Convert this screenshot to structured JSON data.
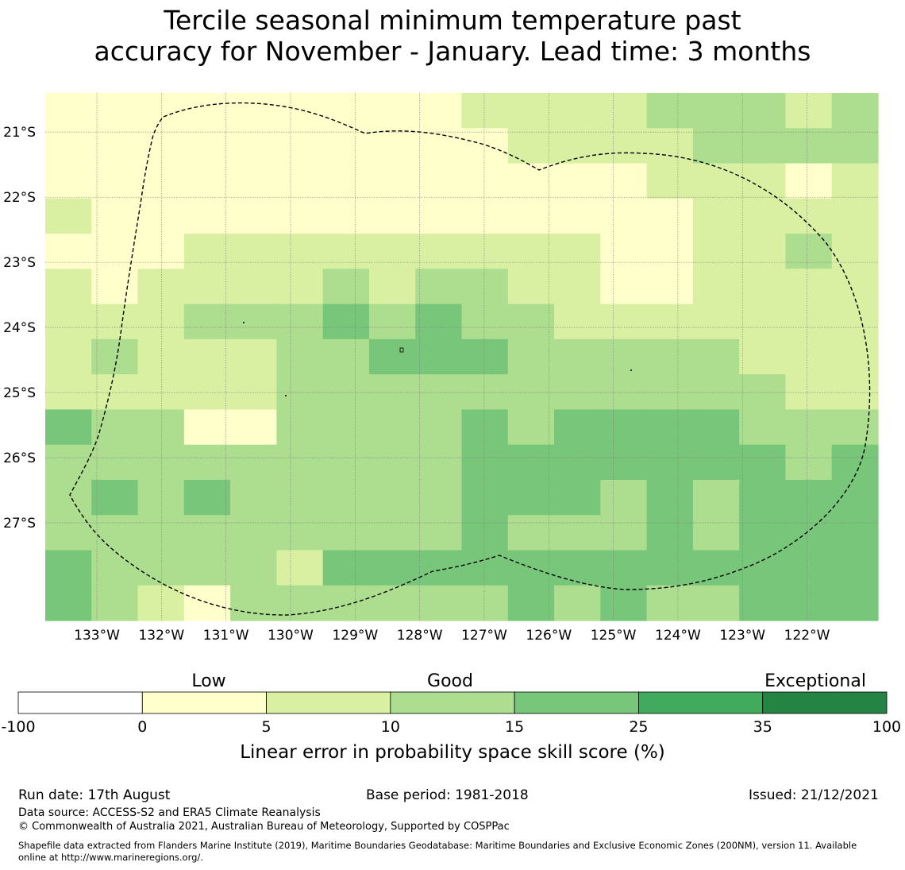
{
  "title_line1": "Tercile seasonal minimum temperature past",
  "title_line2": "accuracy for November - January. Lead time: 3 months",
  "map": {
    "lon_labels": [
      "133°W",
      "132°W",
      "131°W",
      "130°W",
      "129°W",
      "128°W",
      "127°W",
      "126°W",
      "125°W",
      "124°W",
      "123°W",
      "122°W"
    ],
    "lon_values": [
      -133,
      -132,
      -131,
      -130,
      -129,
      -128,
      -127,
      -126,
      -125,
      -124,
      -123,
      -122
    ],
    "lat_labels": [
      "21°S",
      "22°S",
      "23°S",
      "24°S",
      "25°S",
      "26°S",
      "27°S"
    ],
    "lat_values": [
      -21,
      -22,
      -23,
      -24,
      -25,
      -26,
      -27
    ],
    "lon_range": [
      -133.8,
      -120.9
    ],
    "lat_range": [
      -28.5,
      -20.4
    ],
    "grid": true,
    "cell_values_rows_north_to_south": [
      [
        0,
        0,
        0,
        0,
        0,
        0,
        0,
        3,
        0,
        7,
        7,
        7,
        7,
        12,
        12,
        12,
        7,
        12
      ],
      [
        0,
        0,
        0,
        0,
        0,
        0,
        0,
        3,
        0,
        3,
        7,
        7,
        7,
        7,
        12,
        12,
        12,
        12
      ],
      [
        0,
        0,
        0,
        0,
        0,
        0,
        0,
        3,
        3,
        0,
        0,
        3,
        0,
        7,
        7,
        7,
        3,
        7
      ],
      [
        7,
        0,
        0,
        3,
        0,
        3,
        0,
        0,
        0,
        3,
        3,
        3,
        3,
        3,
        7,
        7,
        7,
        7
      ],
      [
        3,
        3,
        3,
        7,
        7,
        7,
        7,
        7,
        7,
        7,
        7,
        7,
        3,
        3,
        7,
        7,
        12,
        7
      ],
      [
        7,
        3,
        7,
        7,
        7,
        7,
        12,
        7,
        12,
        12,
        7,
        7,
        3,
        3,
        7,
        7,
        7,
        7
      ],
      [
        7,
        7,
        7,
        12,
        12,
        12,
        20,
        12,
        20,
        12,
        12,
        7,
        7,
        7,
        7,
        7,
        7,
        7
      ],
      [
        7,
        12,
        7,
        7,
        7,
        12,
        12,
        20,
        20,
        20,
        12,
        12,
        12,
        12,
        12,
        7,
        7,
        7
      ],
      [
        7,
        7,
        7,
        7,
        7,
        12,
        12,
        12,
        12,
        12,
        12,
        12,
        12,
        12,
        12,
        12,
        7,
        7
      ],
      [
        20,
        12,
        12,
        3,
        3,
        12,
        12,
        12,
        12,
        20,
        12,
        20,
        20,
        20,
        20,
        12,
        12,
        12
      ],
      [
        12,
        12,
        12,
        12,
        12,
        12,
        12,
        12,
        12,
        20,
        20,
        20,
        20,
        20,
        20,
        20,
        12,
        20
      ],
      [
        12,
        20,
        12,
        20,
        12,
        12,
        12,
        12,
        12,
        20,
        20,
        20,
        12,
        20,
        12,
        20,
        20,
        20
      ],
      [
        12,
        12,
        12,
        12,
        12,
        12,
        12,
        12,
        12,
        20,
        12,
        12,
        12,
        20,
        12,
        20,
        20,
        20
      ],
      [
        20,
        12,
        12,
        12,
        12,
        7,
        20,
        20,
        20,
        20,
        20,
        20,
        20,
        20,
        20,
        20,
        20,
        20
      ],
      [
        20,
        12,
        7,
        3,
        12,
        12,
        12,
        12,
        12,
        12,
        20,
        12,
        20,
        12,
        12,
        20,
        20,
        20
      ]
    ]
  },
  "colorbar": {
    "category_labels": [
      "Low",
      "Good",
      "Exceptional"
    ],
    "tick_labels": [
      "-100",
      "0",
      "5",
      "10",
      "15",
      "25",
      "35",
      "100"
    ],
    "boundaries": [
      -100,
      0,
      5,
      10,
      15,
      25,
      35,
      100
    ],
    "colors": [
      "#ffffff",
      "#ffffcc",
      "#d9f0a3",
      "#addd8e",
      "#78c679",
      "#41ab5d",
      "#238443"
    ],
    "label": "Linear error in probability space skill score (%)"
  },
  "footer": {
    "run_date": "Run date: 17th August",
    "base_period": "Base period: 1981-2018",
    "issued": "Issued: 21/12/2021",
    "data_source": "Data source: ACCESS-S2 and ERA5 Climate Reanalysis",
    "copyright": "© Commonwealth of Australia 2021, Australian Bureau of Meteorology, Supported by COSPPac",
    "shapefile_line1": "Shapefile data extracted from Flanders Marine Institute (2019), Maritime Boundaries Geodatabase: Maritime Boundaries and Exclusive Economic Zones (200NM), version 11. Available",
    "shapefile_line2": "online at http://www.marineregions.org/."
  }
}
